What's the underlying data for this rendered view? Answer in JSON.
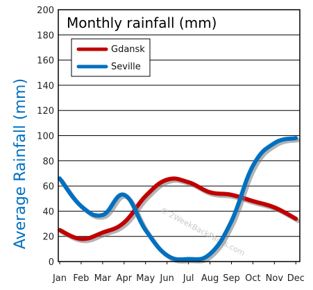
{
  "chart_data": {
    "type": "line",
    "title": "Monthly rainfall (mm)",
    "ylabel": "Average Rainfall (mm)",
    "xlabel": "",
    "categories": [
      "Jan",
      "Feb",
      "Mar",
      "Apr",
      "May",
      "Jun",
      "Jul",
      "Aug",
      "Sep",
      "Oct",
      "Nov",
      "Dec"
    ],
    "ylim": [
      0,
      200
    ],
    "yticks": [
      0,
      20,
      40,
      60,
      80,
      100,
      120,
      140,
      160,
      180,
      200
    ],
    "grid": true,
    "legend_position": "top-left",
    "series": [
      {
        "name": "Gdansk",
        "color": "#c00000",
        "values": [
          25,
          18,
          23,
          31,
          52,
          65,
          63,
          55,
          53,
          48,
          43,
          34
        ]
      },
      {
        "name": "Seville",
        "color": "#0070c0",
        "values": [
          66,
          44,
          37,
          53,
          25,
          5,
          2,
          6,
          32,
          76,
          94,
          98
        ]
      }
    ],
    "watermark": "© 2WeekBackPacks.com",
    "ylabel_color": "#0070c0"
  }
}
